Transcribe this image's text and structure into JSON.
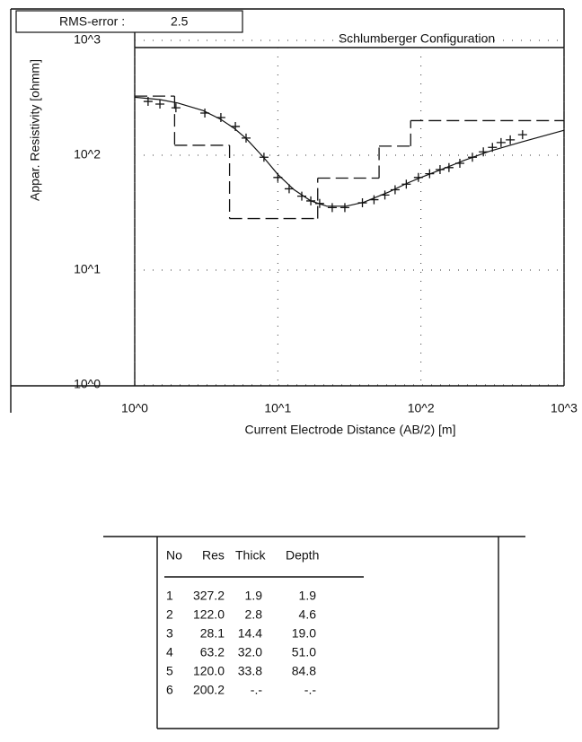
{
  "chart_data": {
    "type": "scatter",
    "title": "Schlumberger Configuration",
    "rms_label": "RMS-error :",
    "rms_value": 2.5,
    "xlabel": "Current Electrode Distance (AB/2) [m]",
    "ylabel": "Appar. Resistivity [ohmm]",
    "log_x": true,
    "log_y": true,
    "grid": true,
    "color": "#111",
    "xlim": [
      1,
      1000
    ],
    "ylim": [
      1,
      1000
    ],
    "xticks": [
      {
        "value": 1,
        "label": "10^0"
      },
      {
        "value": 10,
        "label": "10^1"
      },
      {
        "value": 100,
        "label": "10^2"
      },
      {
        "value": 1000,
        "label": "10^3"
      }
    ],
    "yticks": [
      {
        "value": 1,
        "label": "10^0"
      },
      {
        "value": 10,
        "label": "10^1"
      },
      {
        "value": 100,
        "label": "10^2"
      },
      {
        "value": 1000,
        "label": "10^3"
      }
    ],
    "measured": {
      "x": [
        1.24,
        1.5,
        1.94,
        3.09,
        4.0,
        5.05,
        6.0,
        8.0,
        10,
        12,
        14.7,
        17,
        19.6,
        24,
        29.4,
        39,
        47,
        56,
        66,
        79,
        96,
        115,
        136,
        157,
        187,
        229,
        273,
        316,
        363,
        421,
        513
      ],
      "y": [
        294,
        279,
        259,
        233,
        213,
        178,
        141,
        96,
        64,
        51,
        44,
        40,
        38,
        35,
        35,
        38.5,
        41,
        45,
        50,
        56,
        64,
        69,
        75,
        78,
        85,
        96,
        107,
        117,
        129,
        136,
        151
      ]
    },
    "fitted": {
      "x": [
        1,
        1.5,
        2,
        3,
        4,
        5,
        6,
        8,
        10,
        13,
        17,
        22,
        30,
        40,
        60,
        80,
        100,
        150,
        200,
        300,
        500,
        1000
      ],
      "y": [
        320,
        305,
        285,
        245,
        205,
        170,
        140,
        95,
        68,
        50,
        40,
        36,
        36,
        39,
        48,
        57,
        64,
        78,
        90,
        108,
        130,
        165
      ]
    },
    "model": {
      "depths": [
        1.9,
        4.6,
        19.0,
        51.0,
        84.8
      ],
      "values": [
        327.2,
        122.0,
        28.1,
        63.2,
        120.0,
        200.2
      ]
    }
  },
  "table": {
    "header": [
      "No",
      "Res",
      "Thick",
      "Depth"
    ],
    "rows": [
      [
        "1",
        "327.2",
        "1.9",
        "1.9"
      ],
      [
        "2",
        "122.0",
        "2.8",
        "4.6"
      ],
      [
        "3",
        "28.1",
        "14.4",
        "19.0"
      ],
      [
        "4",
        "63.2",
        "32.0",
        "51.0"
      ],
      [
        "5",
        "120.0",
        "33.8",
        "84.8"
      ],
      [
        "6",
        "200.2",
        "-.-",
        "-.-"
      ]
    ]
  }
}
